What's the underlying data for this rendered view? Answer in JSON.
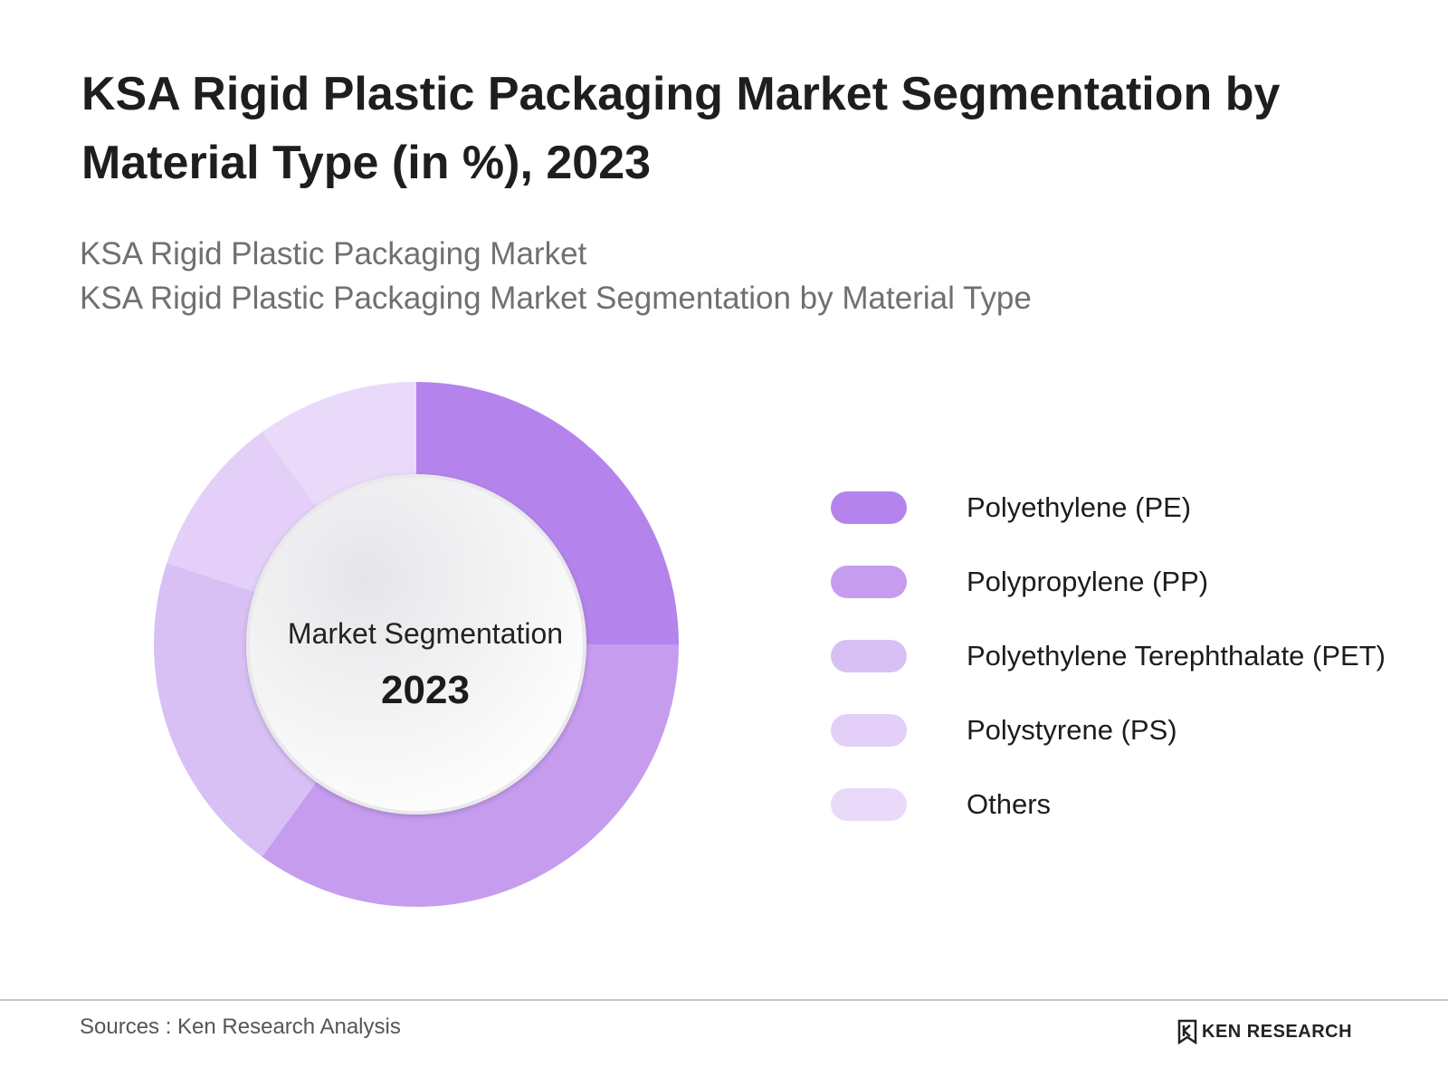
{
  "header": {
    "title": "KSA Rigid Plastic Packaging Market Segmentation by Material Type (in %), 2023",
    "subtitle_line1": "KSA Rigid Plastic Packaging Market",
    "subtitle_line2": "KSA Rigid Plastic Packaging Market Segmentation by Material Type"
  },
  "chart_data": {
    "type": "pie",
    "title": "KSA Rigid Plastic Packaging Market Segmentation by Material Type (in %), 2023",
    "center_label": "Market Segmentation",
    "center_year": "2023",
    "categories": [
      "Polyethylene (PE)",
      "Polypropylene (PP)",
      "Polyethylene Terephthalate (PET)",
      "Polystyrene (PS)",
      "Others"
    ],
    "values": [
      25,
      35,
      20,
      10,
      10
    ],
    "colors": [
      "#b484ec",
      "#c69cef",
      "#d8c0f5",
      "#e3cff7",
      "#eadaf9"
    ],
    "legend_position": "right"
  },
  "footer": {
    "source": "Sources : Ken Research Analysis",
    "logo_text": "KEN RESEARCH"
  }
}
